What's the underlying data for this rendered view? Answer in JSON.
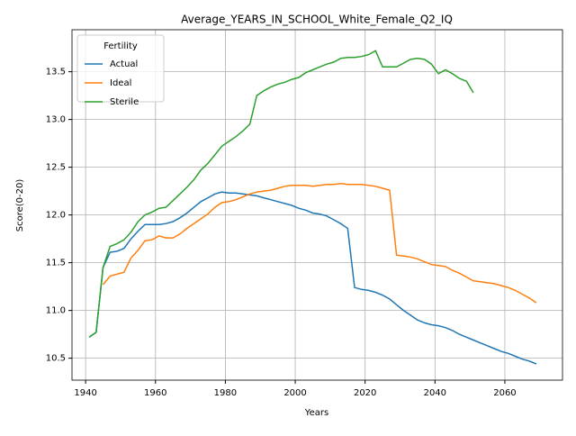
{
  "chart_data": {
    "type": "line",
    "title": "Average_YEARS_IN_SCHOOL_White_Female_Q2_IQ",
    "xlabel": "Years",
    "ylabel": "Score(0-20)",
    "x": [
      1941,
      1943,
      1945,
      1947,
      1949,
      1951,
      1953,
      1955,
      1957,
      1959,
      1961,
      1963,
      1965,
      1967,
      1969,
      1971,
      1973,
      1975,
      1977,
      1979,
      1981,
      1983,
      1985,
      1987,
      1989,
      1991,
      1993,
      1995,
      1997,
      1999,
      2001,
      2003,
      2005,
      2007,
      2009,
      2011,
      2013,
      2015,
      2017,
      2019,
      2021,
      2023,
      2025,
      2027,
      2029,
      2031,
      2033,
      2035,
      2037,
      2039,
      2041,
      2043,
      2045,
      2047,
      2049,
      2051,
      2053,
      2055,
      2057,
      2059,
      2061,
      2063,
      2065,
      2067,
      2069
    ],
    "series": [
      {
        "name": "Actual",
        "color": "#1f77b4",
        "values": [
          10.72,
          10.77,
          11.45,
          11.61,
          11.62,
          11.65,
          11.75,
          11.83,
          11.9,
          11.9,
          11.9,
          11.91,
          11.93,
          11.97,
          12.02,
          12.08,
          12.14,
          12.18,
          12.22,
          12.24,
          12.23,
          12.23,
          12.22,
          12.21,
          12.2,
          12.18,
          12.16,
          12.14,
          12.12,
          12.1,
          12.07,
          12.05,
          12.02,
          12.01,
          11.99,
          11.95,
          11.91,
          11.86,
          11.24,
          11.22,
          11.21,
          11.19,
          11.16,
          11.12,
          11.06,
          11.0,
          10.95,
          10.9,
          10.87,
          10.85,
          10.84,
          10.82,
          10.79,
          10.75,
          10.72,
          10.69,
          10.66,
          10.63,
          10.6,
          10.57,
          10.55,
          10.52,
          10.49,
          10.47,
          10.44
        ]
      },
      {
        "name": "Ideal",
        "color": "#ff7f0e",
        "values": [
          null,
          null,
          11.27,
          11.36,
          11.38,
          11.4,
          11.55,
          11.63,
          11.73,
          11.74,
          11.78,
          11.76,
          11.76,
          11.8,
          11.86,
          11.91,
          11.96,
          12.01,
          12.08,
          12.13,
          12.14,
          12.16,
          12.19,
          12.22,
          12.24,
          12.25,
          12.26,
          12.28,
          12.3,
          12.31,
          12.31,
          12.31,
          12.3,
          12.31,
          12.32,
          12.32,
          12.33,
          12.32,
          12.32,
          12.32,
          12.31,
          12.3,
          12.28,
          12.26,
          11.58,
          11.57,
          11.56,
          11.54,
          11.51,
          11.48,
          11.47,
          11.46,
          11.42,
          11.39,
          11.35,
          11.31,
          11.3,
          11.29,
          11.28,
          11.26,
          11.24,
          11.21,
          11.17,
          11.13,
          11.08
        ]
      },
      {
        "name": "Sterile",
        "color": "#2ca02c",
        "values": [
          10.72,
          10.77,
          11.45,
          11.67,
          11.7,
          11.74,
          11.82,
          11.93,
          12.0,
          12.03,
          12.07,
          12.08,
          12.15,
          12.22,
          12.29,
          12.37,
          12.47,
          12.54,
          12.63,
          12.72,
          12.77,
          12.82,
          12.88,
          12.95,
          13.25,
          13.3,
          13.34,
          13.37,
          13.39,
          13.42,
          13.44,
          13.49,
          13.52,
          13.55,
          13.58,
          13.6,
          13.64,
          13.65,
          13.65,
          13.66,
          13.68,
          13.72,
          13.55,
          13.55,
          13.55,
          13.59,
          13.63,
          13.64,
          13.63,
          13.58,
          13.48,
          13.52,
          13.48,
          13.43,
          13.4,
          13.28,
          null,
          null,
          null,
          null,
          null,
          null,
          null,
          null,
          null
        ]
      }
    ],
    "xlim": [
      1936.1,
      2076.5
    ],
    "xticks": [
      1940,
      1960,
      1980,
      2000,
      2020,
      2040,
      2060
    ],
    "ylim": [
      10.27,
      13.94
    ],
    "yticks": [
      10.5,
      {
        "value": 11,
        "label": "11.0"
      },
      11.5,
      {
        "value": 12,
        "label": "12.0"
      },
      12.5,
      {
        "value": 13,
        "label": "13.0"
      },
      13.5
    ],
    "grid": true,
    "legend_title": "Fertility",
    "legend": "upper left"
  }
}
